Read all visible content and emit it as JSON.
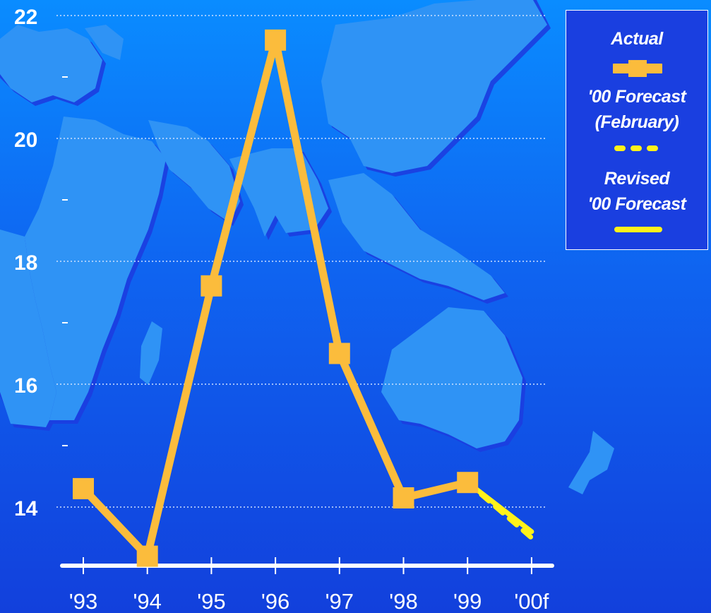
{
  "colors": {
    "actual": "#fbbc3c",
    "forecast_feb": "#fff21a",
    "revised": "#fff21a",
    "grid": "#cfe1ff",
    "text": "#ffffff"
  },
  "legend": {
    "actual": "Actual",
    "forecast_line1": "'00 Forecast",
    "forecast_line2": "(February)",
    "revised_line1": "Revised",
    "revised_line2": "'00 Forecast"
  },
  "chart_data": {
    "type": "line",
    "categories": [
      "'93",
      "'94",
      "'95",
      "'96",
      "'97",
      "'98",
      "'99",
      "'00f"
    ],
    "ylim": [
      13,
      22
    ],
    "yticks": [
      14,
      16,
      18,
      20,
      22
    ],
    "ytick_labels": [
      "14",
      "16",
      "18",
      "20",
      "22"
    ],
    "minor_yticks": [
      15,
      17,
      19,
      21
    ],
    "grid": true,
    "legend_position": "top-right",
    "series": [
      {
        "name": "Actual",
        "style": "solid-square-markers",
        "values": [
          14.3,
          13.2,
          17.6,
          21.6,
          16.5,
          14.15,
          14.4,
          null
        ]
      },
      {
        "name": "'00 Forecast (February)",
        "style": "dashed",
        "values": [
          null,
          null,
          null,
          null,
          null,
          null,
          14.4,
          13.5
        ]
      },
      {
        "name": "Revised '00 Forecast",
        "style": "solid",
        "values": [
          null,
          null,
          null,
          null,
          null,
          null,
          14.4,
          13.6
        ]
      }
    ]
  }
}
